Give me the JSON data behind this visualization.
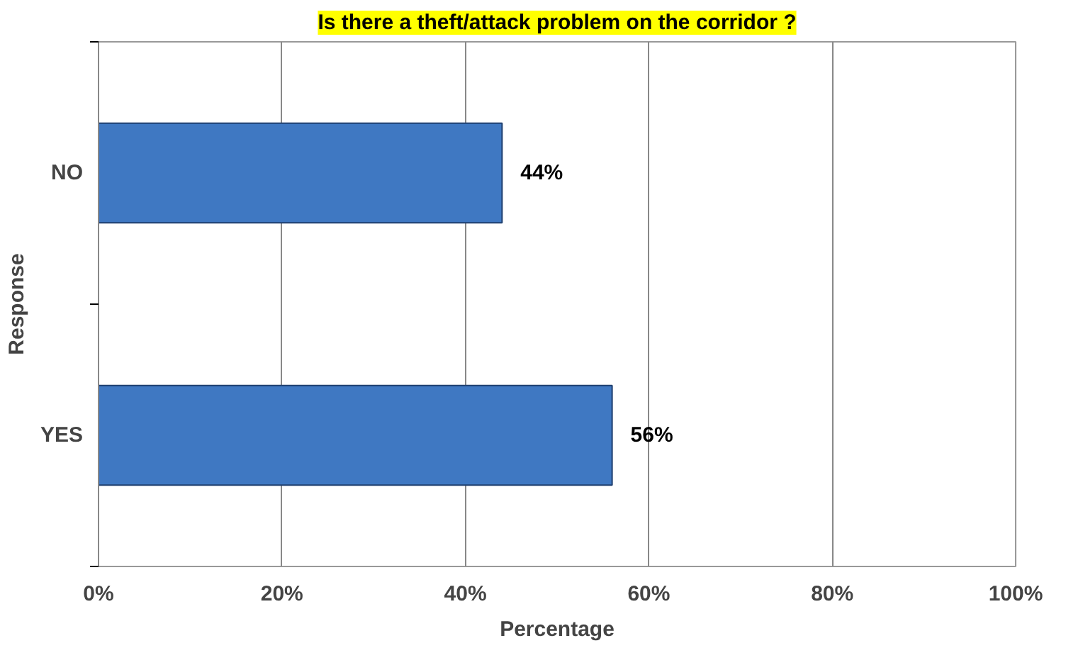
{
  "chart_data": {
    "type": "bar",
    "orientation": "horizontal",
    "title": "Is there a theft/attack problem on the corridor ?",
    "xlabel": "Percentage",
    "ylabel": "Response",
    "categories": [
      "NO",
      "YES"
    ],
    "values": [
      44,
      56
    ],
    "value_labels": [
      "44%",
      "56%"
    ],
    "color": "#3f78c2",
    "xlim": [
      0,
      100
    ],
    "xticks": [
      {
        "value": 0,
        "label": "0%"
      },
      {
        "value": 20,
        "label": "20%"
      },
      {
        "value": 40,
        "label": "40%"
      },
      {
        "value": 60,
        "label": "60%"
      },
      {
        "value": 80,
        "label": "80%"
      },
      {
        "value": 100,
        "label": "100%"
      }
    ],
    "grid": "x"
  }
}
